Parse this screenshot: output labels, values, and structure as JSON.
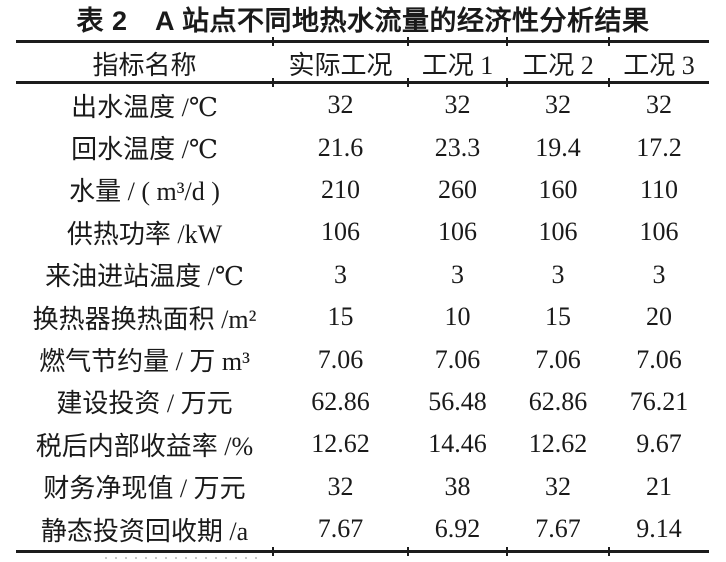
{
  "title": "表 2　A 站点不同地热水流量的经济性分析结果",
  "colors": {
    "ink": "#1a1a1a",
    "background": "#ffffff"
  },
  "table": {
    "columns": [
      "指标名称",
      "实际工况",
      "工况 1",
      "工况 2",
      "工况 3"
    ],
    "rows": [
      {
        "label": "出水温度 /℃",
        "values": [
          "32",
          "32",
          "32",
          "32"
        ]
      },
      {
        "label": "回水温度 /℃",
        "values": [
          "21.6",
          "23.3",
          "19.4",
          "17.2"
        ]
      },
      {
        "label": "水量 / ( m³/d )",
        "values": [
          "210",
          "260",
          "160",
          "110"
        ]
      },
      {
        "label": "供热功率 /kW",
        "values": [
          "106",
          "106",
          "106",
          "106"
        ]
      },
      {
        "label": "来油进站温度 /℃",
        "values": [
          "3",
          "3",
          "3",
          "3"
        ]
      },
      {
        "label": "换热器换热面积 /m²",
        "values": [
          "15",
          "10",
          "15",
          "20"
        ]
      },
      {
        "label": "燃气节约量 / 万 m³",
        "values": [
          "7.06",
          "7.06",
          "7.06",
          "7.06"
        ]
      },
      {
        "label": "建设投资 / 万元",
        "values": [
          "62.86",
          "56.48",
          "62.86",
          "76.21"
        ]
      },
      {
        "label": "税后内部收益率 /%",
        "values": [
          "12.62",
          "14.46",
          "12.62",
          "9.67"
        ]
      },
      {
        "label": "财务净现值 / 万元",
        "values": [
          "32",
          "38",
          "32",
          "21"
        ]
      },
      {
        "label": "静态投资回收期 /a",
        "values": [
          "7.67",
          "6.92",
          "7.67",
          "9.14"
        ]
      }
    ]
  },
  "chart_data": {
    "type": "table",
    "title": "表 2　A 站点不同地热水流量的经济性分析结果",
    "columns": [
      "指标名称",
      "实际工况",
      "工况 1",
      "工况 2",
      "工况 3"
    ],
    "rows": [
      [
        "出水温度 /℃",
        "32",
        "32",
        "32",
        "32"
      ],
      [
        "回水温度 /℃",
        "21.6",
        "23.3",
        "19.4",
        "17.2"
      ],
      [
        "水量 / ( m³/d )",
        "210",
        "260",
        "160",
        "110"
      ],
      [
        "供热功率 /kW",
        "106",
        "106",
        "106",
        "106"
      ],
      [
        "来油进站温度 /℃",
        "3",
        "3",
        "3",
        "3"
      ],
      [
        "换热器换热面积 /m²",
        "15",
        "10",
        "15",
        "20"
      ],
      [
        "燃气节约量 / 万 m³",
        "7.06",
        "7.06",
        "7.06",
        "7.06"
      ],
      [
        "建设投资 / 万元",
        "62.86",
        "56.48",
        "62.86",
        "76.21"
      ],
      [
        "税后内部收益率 /%",
        "12.62",
        "14.46",
        "12.62",
        "9.67"
      ],
      [
        "财务净现值 / 万元",
        "32",
        "38",
        "32",
        "21"
      ],
      [
        "静态投资回收期 /a",
        "7.67",
        "6.92",
        "7.67",
        "9.14"
      ]
    ]
  }
}
